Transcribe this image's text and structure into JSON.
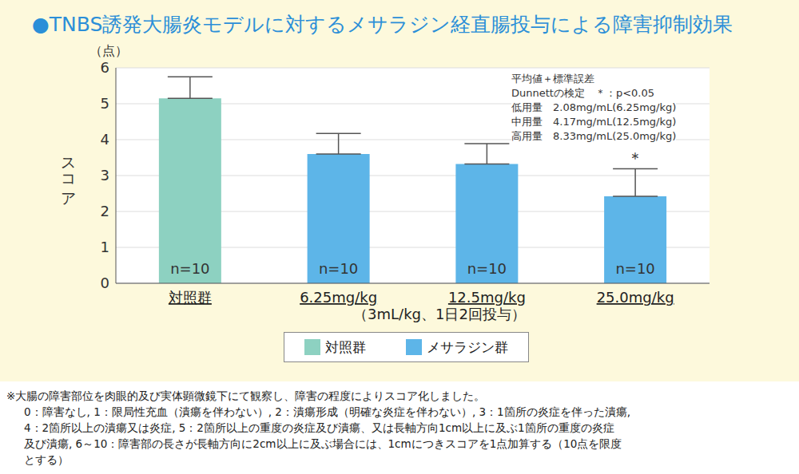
{
  "chart_data": {
    "type": "bar",
    "title": "●TNBS誘発大腸炎モデルに対するメサラジン経直腸投与による障害抑制効果",
    "y_unit": "（点）",
    "y_label": "スコア",
    "x_label": "（3mL/kg、1日2回投与）",
    "categories": [
      "対照群",
      "6.25mg/kg",
      "12.5mg/kg",
      "25.0mg/kg"
    ],
    "series": [
      {
        "name": "対照群",
        "color": "#8dd1c1",
        "values": [
          5.15,
          null,
          null,
          null
        ],
        "errors": [
          0.6,
          null,
          null,
          null
        ]
      },
      {
        "name": "メサラジン群",
        "color": "#5db5e8",
        "values": [
          null,
          3.6,
          3.32,
          2.42
        ],
        "errors": [
          null,
          0.57,
          0.57,
          0.77
        ]
      }
    ],
    "ylim": [
      0,
      6
    ],
    "yticks": [
      0,
      1,
      2,
      3,
      4,
      5,
      6
    ],
    "grid": true,
    "legend": "bottom",
    "annotations": {
      "n": [
        "n=10",
        "n=10",
        "n=10",
        "n=10"
      ],
      "significance": [
        null,
        null,
        null,
        "＊"
      ],
      "stats_note": [
        "平均値＋標準誤差",
        "Dunnettの検定　＊：p<0.05",
        "低用量　2.08mg/mL(6.25mg/kg)",
        "中用量　4.17mg/mL(12.5mg/kg)",
        "高用量　8.33mg/mL(25.0mg/kg)"
      ],
      "footnote": [
        "※大腸の障害部位を肉眼的及び実体顕微鏡下にて観察し、障害の程度によりスコア化しました。",
        "0：障害なし, 1：限局性充血（潰瘍を伴わない）, 2：潰瘍形成（明確な炎症を伴わない）, 3：1箇所の炎症を伴った潰瘍,",
        "4：2箇所以上の潰瘍又は炎症, 5：2箇所以上の重度の炎症及び潰瘍、又は長軸方向1cm以上に及ぶ1箇所の重度の炎症",
        "及び潰瘍, 6～10：障害部の長さが長軸方向に2cm以上に及ぶ場合には、1cmにつきスコアを1点加算する（10点を限度",
        "とする）"
      ]
    }
  }
}
